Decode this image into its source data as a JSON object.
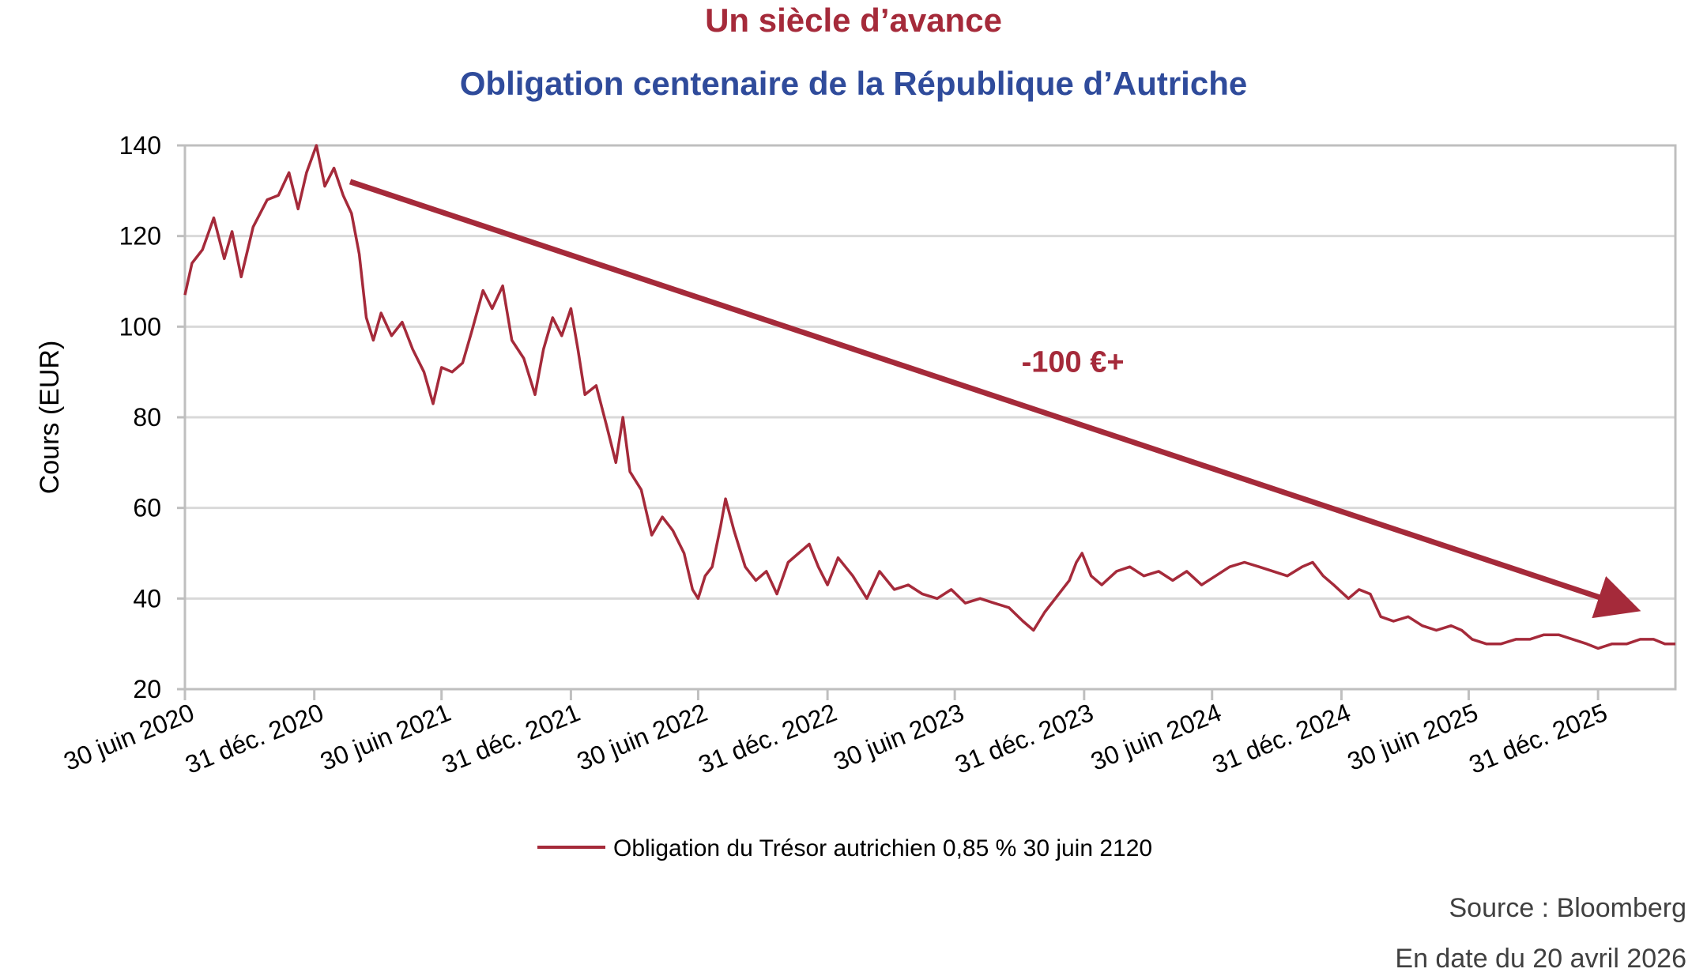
{
  "header": {
    "title": "Un siècle d’avance",
    "subtitle": "Obligation centenaire de la République d’Autriche"
  },
  "footer": {
    "source": "Source : Bloomberg",
    "as_of": "En date du 20 avril 2026"
  },
  "colors": {
    "series": "#a52a3a",
    "title": "#a52a3a",
    "subtitle": "#2f4b9b",
    "grid": "#d9d9d9",
    "frame": "#bfbfbf"
  },
  "chart_data": {
    "type": "line",
    "ylabel": "Cours (EUR)",
    "ylim": [
      20,
      140
    ],
    "yticks": [
      20,
      40,
      60,
      80,
      100,
      120,
      140
    ],
    "xlim": [
      "2020-06-30",
      "2026-04-20"
    ],
    "xticks": [
      {
        "date": "2020-06-30",
        "label": "30 juin 2020"
      },
      {
        "date": "2020-12-31",
        "label": "31 déc. 2020"
      },
      {
        "date": "2021-06-30",
        "label": "30 juin 2021"
      },
      {
        "date": "2021-12-31",
        "label": "31 déc. 2021"
      },
      {
        "date": "2022-06-30",
        "label": "30 juin 2022"
      },
      {
        "date": "2022-12-31",
        "label": "31 déc. 2022"
      },
      {
        "date": "2023-06-30",
        "label": "30 juin 2023"
      },
      {
        "date": "2023-12-31",
        "label": "31 déc. 2023"
      },
      {
        "date": "2024-06-30",
        "label": "30 juin 2024"
      },
      {
        "date": "2024-12-31",
        "label": "31 déc. 2024"
      },
      {
        "date": "2025-06-30",
        "label": "30 juin 2025"
      },
      {
        "date": "2025-12-31",
        "label": "31 déc. 2025"
      }
    ],
    "grid": "horizontal",
    "legend_position": "bottom",
    "series": [
      {
        "name": "Obligation du Trésor autrichien 0,85 % 30 juin 2120",
        "points": [
          [
            "2020-06-30",
            107
          ],
          [
            "2020-07-10",
            114
          ],
          [
            "2020-07-25",
            117
          ],
          [
            "2020-08-10",
            124
          ],
          [
            "2020-08-25",
            115
          ],
          [
            "2020-09-05",
            121
          ],
          [
            "2020-09-18",
            111
          ],
          [
            "2020-10-05",
            122
          ],
          [
            "2020-10-25",
            128
          ],
          [
            "2020-11-10",
            129
          ],
          [
            "2020-11-25",
            134
          ],
          [
            "2020-12-08",
            126
          ],
          [
            "2020-12-20",
            134
          ],
          [
            "2021-01-03",
            140
          ],
          [
            "2021-01-15",
            131
          ],
          [
            "2021-01-28",
            135
          ],
          [
            "2021-02-10",
            129
          ],
          [
            "2021-02-22",
            125
          ],
          [
            "2021-03-05",
            116
          ],
          [
            "2021-03-15",
            102
          ],
          [
            "2021-03-25",
            97
          ],
          [
            "2021-04-05",
            103
          ],
          [
            "2021-04-20",
            98
          ],
          [
            "2021-05-05",
            101
          ],
          [
            "2021-05-20",
            95
          ],
          [
            "2021-06-05",
            90
          ],
          [
            "2021-06-18",
            83
          ],
          [
            "2021-06-30",
            91
          ],
          [
            "2021-07-15",
            90
          ],
          [
            "2021-07-30",
            92
          ],
          [
            "2021-08-12",
            99
          ],
          [
            "2021-08-28",
            108
          ],
          [
            "2021-09-10",
            104
          ],
          [
            "2021-09-25",
            109
          ],
          [
            "2021-10-08",
            97
          ],
          [
            "2021-10-25",
            93
          ],
          [
            "2021-11-10",
            85
          ],
          [
            "2021-11-22",
            95
          ],
          [
            "2021-12-05",
            102
          ],
          [
            "2021-12-18",
            98
          ],
          [
            "2021-12-31",
            104
          ],
          [
            "2022-01-10",
            95
          ],
          [
            "2022-01-20",
            85
          ],
          [
            "2022-02-05",
            87
          ],
          [
            "2022-02-20",
            78
          ],
          [
            "2022-03-05",
            70
          ],
          [
            "2022-03-15",
            80
          ],
          [
            "2022-03-25",
            68
          ],
          [
            "2022-04-10",
            64
          ],
          [
            "2022-04-25",
            54
          ],
          [
            "2022-05-10",
            58
          ],
          [
            "2022-05-25",
            55
          ],
          [
            "2022-06-10",
            50
          ],
          [
            "2022-06-22",
            42
          ],
          [
            "2022-06-30",
            40
          ],
          [
            "2022-07-10",
            45
          ],
          [
            "2022-07-20",
            47
          ],
          [
            "2022-08-01",
            56
          ],
          [
            "2022-08-08",
            62
          ],
          [
            "2022-08-20",
            55
          ],
          [
            "2022-09-05",
            47
          ],
          [
            "2022-09-20",
            44
          ],
          [
            "2022-10-05",
            46
          ],
          [
            "2022-10-20",
            41
          ],
          [
            "2022-11-05",
            48
          ],
          [
            "2022-11-20",
            50
          ],
          [
            "2022-12-05",
            52
          ],
          [
            "2022-12-18",
            47
          ],
          [
            "2022-12-31",
            43
          ],
          [
            "2023-01-15",
            49
          ],
          [
            "2023-02-05",
            45
          ],
          [
            "2023-02-25",
            40
          ],
          [
            "2023-03-15",
            46
          ],
          [
            "2023-04-05",
            42
          ],
          [
            "2023-04-25",
            43
          ],
          [
            "2023-05-15",
            41
          ],
          [
            "2023-06-05",
            40
          ],
          [
            "2023-06-25",
            42
          ],
          [
            "2023-07-15",
            39
          ],
          [
            "2023-08-05",
            40
          ],
          [
            "2023-08-25",
            39
          ],
          [
            "2023-09-15",
            38
          ],
          [
            "2023-10-05",
            35
          ],
          [
            "2023-10-20",
            33
          ],
          [
            "2023-11-05",
            37
          ],
          [
            "2023-11-25",
            41
          ],
          [
            "2023-12-10",
            44
          ],
          [
            "2023-12-20",
            48
          ],
          [
            "2023-12-28",
            50
          ],
          [
            "2024-01-10",
            45
          ],
          [
            "2024-01-25",
            43
          ],
          [
            "2024-02-15",
            46
          ],
          [
            "2024-03-05",
            47
          ],
          [
            "2024-03-25",
            45
          ],
          [
            "2024-04-15",
            46
          ],
          [
            "2024-05-05",
            44
          ],
          [
            "2024-05-25",
            46
          ],
          [
            "2024-06-15",
            43
          ],
          [
            "2024-07-05",
            45
          ],
          [
            "2024-07-25",
            47
          ],
          [
            "2024-08-15",
            48
          ],
          [
            "2024-09-05",
            47
          ],
          [
            "2024-09-25",
            46
          ],
          [
            "2024-10-15",
            45
          ],
          [
            "2024-11-05",
            47
          ],
          [
            "2024-11-20",
            48
          ],
          [
            "2024-12-05",
            45
          ],
          [
            "2024-12-20",
            43
          ],
          [
            "2025-01-10",
            40
          ],
          [
            "2025-01-25",
            42
          ],
          [
            "2025-02-10",
            41
          ],
          [
            "2025-02-25",
            36
          ],
          [
            "2025-03-15",
            35
          ],
          [
            "2025-04-05",
            36
          ],
          [
            "2025-04-25",
            34
          ],
          [
            "2025-05-15",
            33
          ],
          [
            "2025-06-05",
            34
          ],
          [
            "2025-06-20",
            33
          ],
          [
            "2025-07-05",
            31
          ],
          [
            "2025-07-25",
            30
          ],
          [
            "2025-08-15",
            30
          ],
          [
            "2025-09-05",
            31
          ],
          [
            "2025-09-25",
            31
          ],
          [
            "2025-10-15",
            32
          ],
          [
            "2025-11-05",
            32
          ],
          [
            "2025-11-25",
            31
          ],
          [
            "2025-12-15",
            30
          ],
          [
            "2025-12-31",
            29
          ],
          [
            "2026-01-20",
            30
          ],
          [
            "2026-02-10",
            30
          ],
          [
            "2026-03-01",
            31
          ],
          [
            "2026-03-20",
            31
          ],
          [
            "2026-04-05",
            30
          ],
          [
            "2026-04-20",
            30
          ]
        ]
      }
    ],
    "annotations": [
      {
        "text": "-100 €+",
        "arrow_from": [
          "2021-02-20",
          132
        ],
        "arrow_to": [
          "2026-02-15",
          38
        ],
        "label_at": [
          "2023-12-15",
          90
        ]
      }
    ]
  }
}
